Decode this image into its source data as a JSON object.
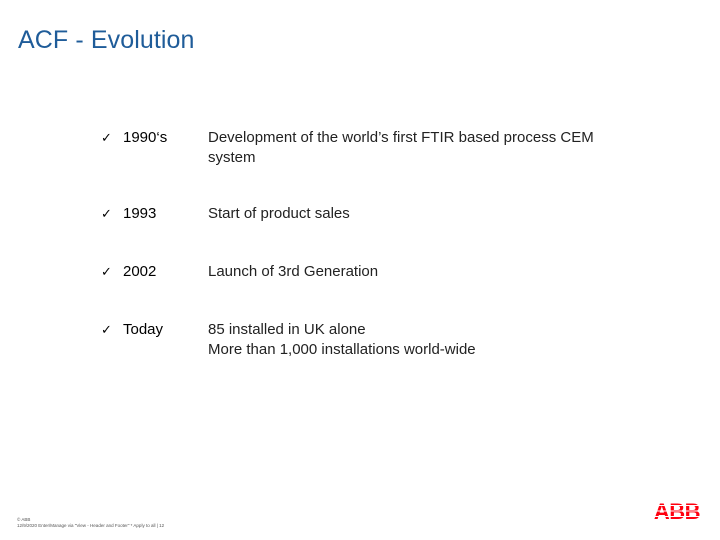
{
  "title": "ACF - Evolution",
  "timeline": [
    {
      "year": "1990‘s",
      "lines": [
        "Development of the world’s first FTIR based process CEM",
        "system"
      ]
    },
    {
      "year": "1993",
      "lines": [
        "Start of product sales"
      ]
    },
    {
      "year": "2002",
      "lines": [
        "Launch of 3rd Generation"
      ]
    },
    {
      "year": "Today",
      "lines": [
        "85 installed in UK alone",
        "More than 1,000 installations world-wide"
      ]
    }
  ],
  "check_glyph": "✓",
  "footer": {
    "copyright": "© ABB",
    "line": "12/9/2020 Enter/Manage via \"View - Header and Footer\" * Apply to all  | 12"
  },
  "logo_text": "ABB",
  "colors": {
    "title": "#1f5c99",
    "logo": "#ff000f"
  }
}
